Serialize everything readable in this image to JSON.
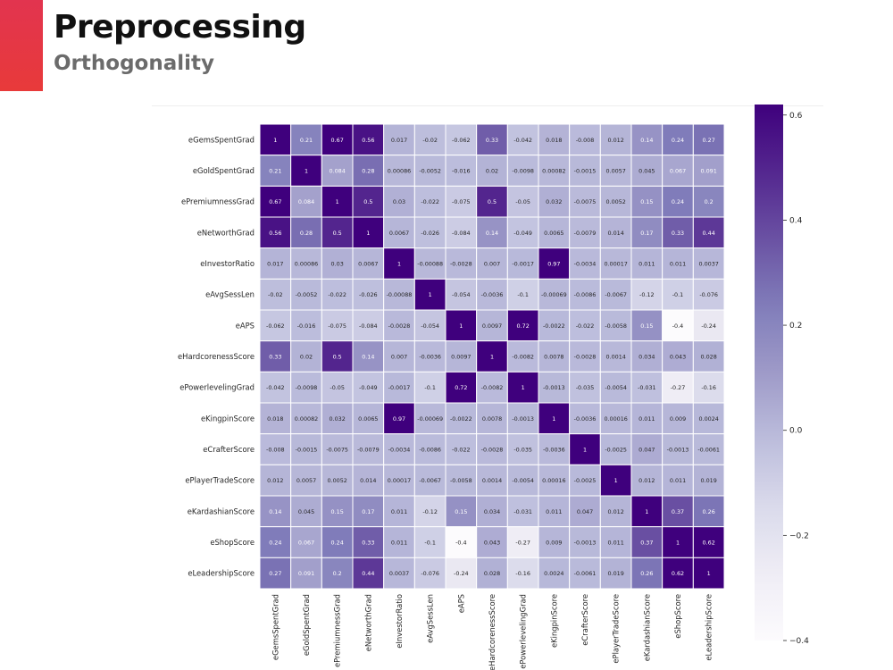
{
  "slide": {
    "title": "Preprocessing",
    "subtitle": "Orthogonality",
    "accent_color": "#e8383f"
  },
  "chart_data": {
    "type": "heatmap",
    "title": "",
    "xlabel": "",
    "ylabel": "",
    "colormap": "Purples",
    "vmin": -0.4,
    "vmax": 0.62,
    "colorbar_ticks": [
      0.6,
      0.4,
      0.2,
      0.0,
      -0.2,
      -0.4
    ],
    "colorbar_tick_labels": [
      "0.6",
      "0.4",
      "0.2",
      "0.0",
      "−0.2",
      "−0.4"
    ],
    "labels": [
      "eGemsSpentGrad",
      "eGoldSpentGrad",
      "ePremiumnessGrad",
      "eNetworthGrad",
      "eInvestorRatio",
      "eAvgSessLen",
      "eAPS",
      "eHardcorenessScore",
      "ePowerlevelingGrad",
      "eKingpinScore",
      "eCrafterScore",
      "ePlayerTradeScore",
      "eKardashianScore",
      "eShopScore",
      "eLeadershipScore"
    ],
    "values": [
      [
        1,
        0.21,
        0.67,
        0.56,
        0.017,
        -0.02,
        -0.062,
        0.33,
        -0.042,
        0.018,
        -0.008,
        0.012,
        0.14,
        0.24,
        0.27
      ],
      [
        0.21,
        1,
        0.084,
        0.28,
        0.00086,
        -0.0052,
        -0.016,
        0.02,
        -0.0098,
        0.00082,
        -0.0015,
        0.0057,
        0.045,
        0.067,
        0.091
      ],
      [
        0.67,
        0.084,
        1,
        0.5,
        0.03,
        -0.022,
        -0.075,
        0.5,
        -0.05,
        0.032,
        -0.0075,
        0.0052,
        0.15,
        0.24,
        0.2
      ],
      [
        0.56,
        0.28,
        0.5,
        1,
        0.0067,
        -0.026,
        -0.084,
        0.14,
        -0.049,
        0.0065,
        -0.0079,
        0.014,
        0.17,
        0.33,
        0.44
      ],
      [
        0.017,
        0.00086,
        0.03,
        0.0067,
        1,
        -0.00088,
        -0.0028,
        0.007,
        -0.0017,
        0.97,
        -0.0034,
        0.00017,
        0.011,
        0.011,
        0.0037
      ],
      [
        -0.02,
        -0.0052,
        -0.022,
        -0.026,
        -0.00088,
        1,
        -0.054,
        -0.0036,
        -0.1,
        -0.00069,
        -0.0086,
        -0.0067,
        -0.12,
        -0.1,
        -0.076
      ],
      [
        -0.062,
        -0.016,
        -0.075,
        -0.084,
        -0.0028,
        -0.054,
        1,
        0.0097,
        0.72,
        -0.0022,
        -0.022,
        -0.0058,
        0.15,
        -0.4,
        -0.24
      ],
      [
        0.33,
        0.02,
        0.5,
        0.14,
        0.007,
        -0.0036,
        0.0097,
        1,
        -0.0082,
        0.0078,
        -0.0028,
        0.0014,
        0.034,
        0.043,
        0.028
      ],
      [
        -0.042,
        -0.0098,
        -0.05,
        -0.049,
        -0.0017,
        -0.1,
        0.72,
        -0.0082,
        1,
        -0.0013,
        -0.035,
        -0.0054,
        -0.031,
        -0.27,
        -0.16
      ],
      [
        0.018,
        0.00082,
        0.032,
        0.0065,
        0.97,
        -0.00069,
        -0.0022,
        0.0078,
        -0.0013,
        1,
        -0.0036,
        0.00016,
        0.011,
        0.009,
        0.0024
      ],
      [
        -0.008,
        -0.0015,
        -0.0075,
        -0.0079,
        -0.0034,
        -0.0086,
        -0.022,
        -0.0028,
        -0.035,
        -0.0036,
        1,
        -0.0025,
        0.047,
        -0.0013,
        -0.0061
      ],
      [
        0.012,
        0.0057,
        0.0052,
        0.014,
        0.00017,
        -0.0067,
        -0.0058,
        0.0014,
        -0.0054,
        0.00016,
        -0.0025,
        1,
        0.012,
        0.011,
        0.019
      ],
      [
        0.14,
        0.045,
        0.15,
        0.17,
        0.011,
        -0.12,
        0.15,
        0.034,
        -0.031,
        0.011,
        0.047,
        0.012,
        1,
        0.37,
        0.26
      ],
      [
        0.24,
        0.067,
        0.24,
        0.33,
        0.011,
        -0.1,
        -0.4,
        0.043,
        -0.27,
        0.009,
        -0.0013,
        0.011,
        0.37,
        1,
        0.62
      ],
      [
        0.27,
        0.091,
        0.2,
        0.44,
        0.0037,
        -0.076,
        -0.24,
        0.028,
        -0.16,
        0.0024,
        -0.0061,
        0.019,
        0.26,
        0.62,
        1
      ]
    ]
  }
}
